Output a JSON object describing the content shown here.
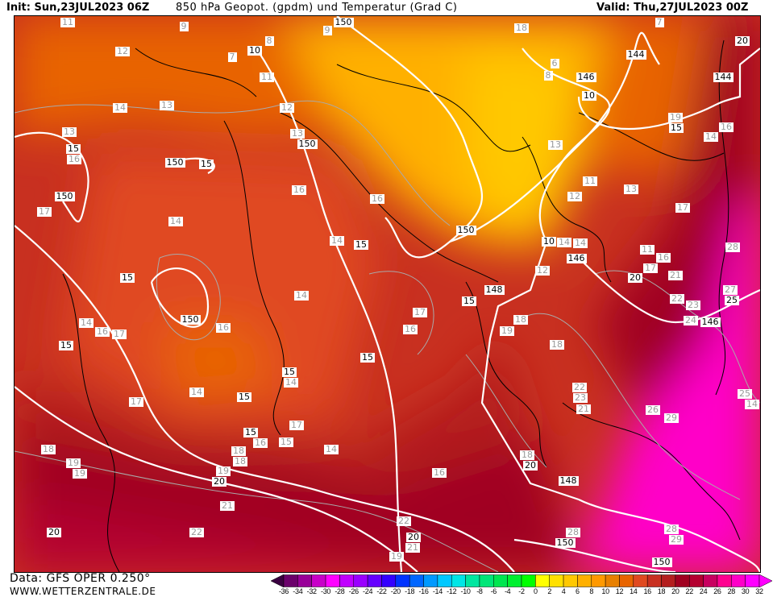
{
  "header": {
    "init": "Init: Sun,23JUL2023 06Z",
    "title": "850 hPa Geopot. (gpdm) und Temperatur (Grad C)",
    "valid": "Valid: Thu,27JUL2023 00Z"
  },
  "footer": {
    "data_source": "Data: GFS OPER 0.250°",
    "website": "WWW.WETTERZENTRALE.DE"
  },
  "map": {
    "geopotential_labels": [
      "150",
      "144",
      "146",
      "144",
      "150",
      "150",
      "150",
      "150",
      "146",
      "148",
      "150",
      "146",
      "148",
      "150",
      "150",
      "10",
      "10",
      "10",
      "20"
    ],
    "isotherm_labels_black": [
      "15",
      "15",
      "15",
      "15",
      "15",
      "15",
      "15",
      "15",
      "15",
      "15",
      "15",
      "20",
      "20",
      "20",
      "20",
      "20",
      "25"
    ],
    "temperature_labels": [
      "11",
      "9",
      "8",
      "9",
      "12",
      "7",
      "11",
      "13",
      "14",
      "13",
      "12",
      "13",
      "16",
      "17",
      "14",
      "16",
      "16",
      "14",
      "14",
      "17",
      "16",
      "14",
      "16",
      "17",
      "16",
      "14",
      "14",
      "17",
      "16",
      "15",
      "14",
      "16",
      "17",
      "18",
      "19",
      "18",
      "19",
      "21",
      "22",
      "22",
      "21",
      "19",
      "18",
      "6",
      "8",
      "7",
      "13",
      "12",
      "11",
      "13",
      "14",
      "14",
      "12",
      "11",
      "16",
      "17",
      "18",
      "19",
      "18",
      "17",
      "16",
      "14",
      "19",
      "21",
      "22",
      "23",
      "24",
      "28",
      "27",
      "25",
      "26",
      "29",
      "28",
      "23",
      "22",
      "21",
      "28",
      "29",
      "14",
      "18",
      "19",
      "18"
    ]
  },
  "colorbar": {
    "ticks": [
      "-36",
      "-34",
      "-32",
      "-30",
      "-28",
      "-26",
      "-24",
      "-22",
      "-20",
      "-18",
      "-16",
      "-14",
      "-12",
      "-10",
      "-8",
      "-6",
      "-4",
      "-2",
      "0",
      "2",
      "4",
      "6",
      "8",
      "10",
      "12",
      "14",
      "16",
      "18",
      "20",
      "22",
      "24",
      "26",
      "28",
      "30",
      "32"
    ],
    "colors": [
      "#6b006b",
      "#990099",
      "#c800c8",
      "#ff00ff",
      "#c000ff",
      "#9a00ff",
      "#6600ff",
      "#3300ff",
      "#0033ff",
      "#0066ff",
      "#0099ff",
      "#00c8ff",
      "#00e6e6",
      "#00e6a0",
      "#00e678",
      "#00e650",
      "#00f030",
      "#00ff00",
      "#ffff00",
      "#ffe000",
      "#ffc800",
      "#ffb000",
      "#ff9900",
      "#e88000",
      "#e86400",
      "#e04a20",
      "#c83020",
      "#b41e1e",
      "#a00020",
      "#b40030",
      "#c80060",
      "#ff0090",
      "#ff00c8",
      "#ff00ff"
    ],
    "low_arrow_color": "#3a0040",
    "high_arrow_color": "#ff00ff"
  }
}
